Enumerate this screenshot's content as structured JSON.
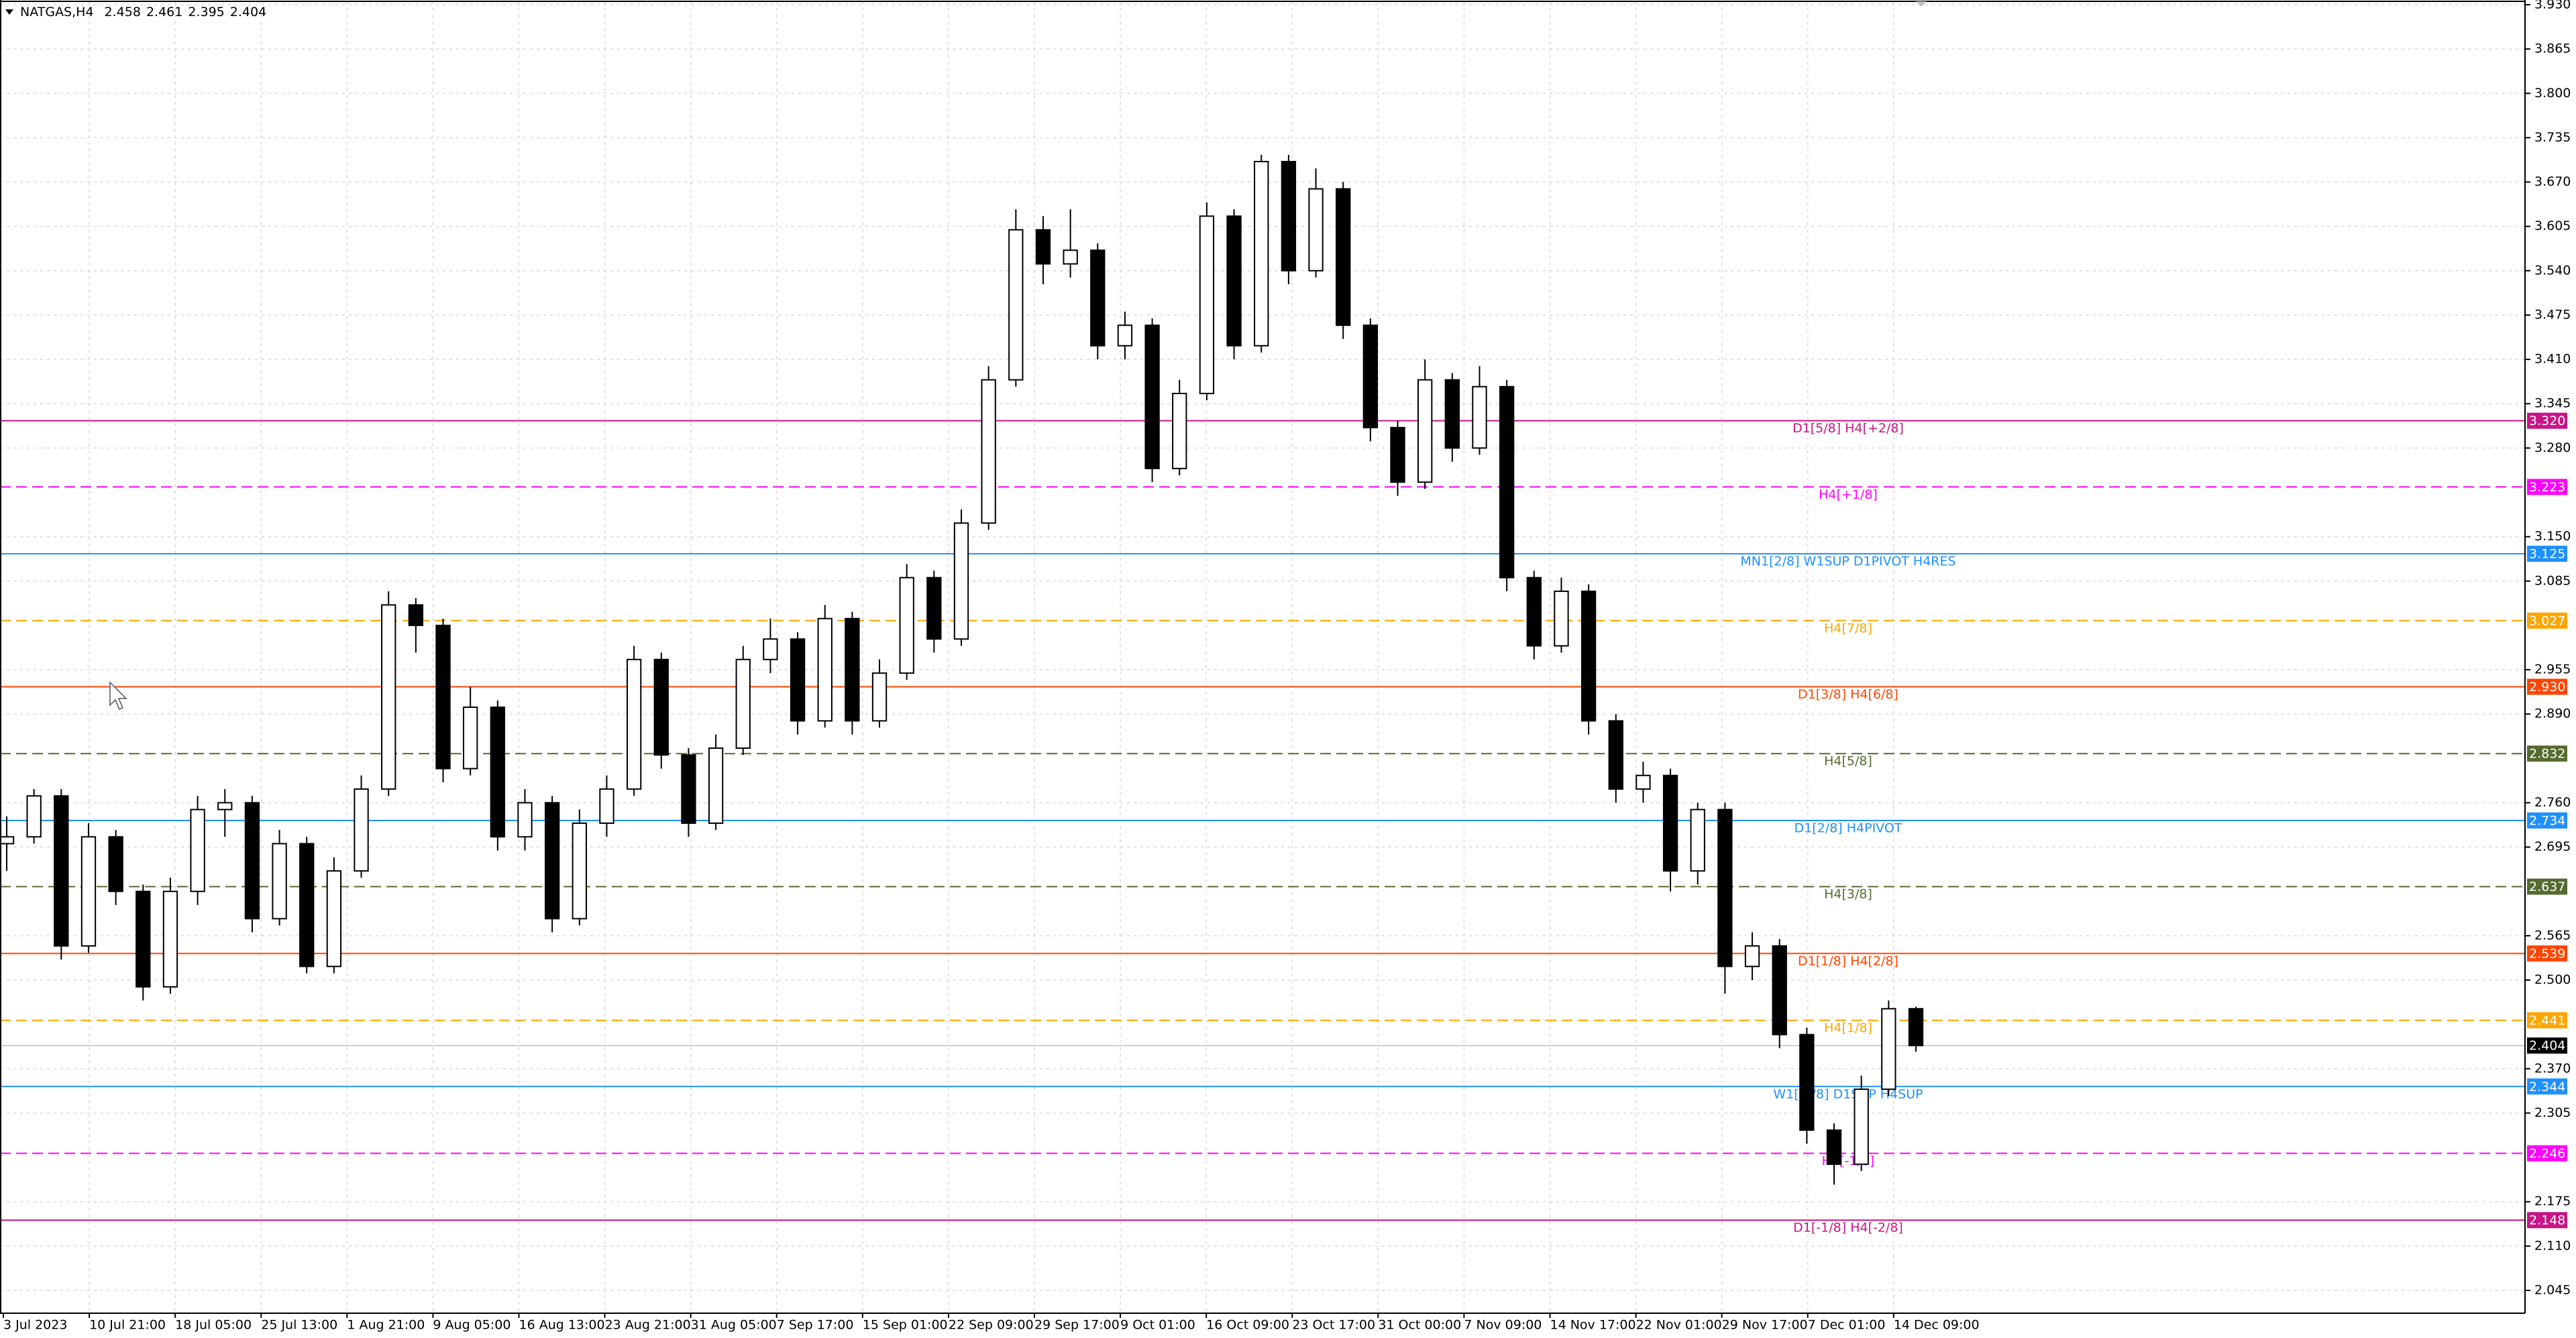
{
  "chart_data": {
    "type": "candlestick",
    "title": "NATGAS,H4",
    "header_ohlc": [
      2.458,
      2.461,
      2.395,
      2.404
    ],
    "last_price": 2.404,
    "ylim": [
      2.045,
      3.93
    ],
    "yticks": [
      {
        "value": 3.93,
        "label": "3.930"
      },
      3.865,
      {
        "value": 3.8,
        "label": "3.800"
      },
      3.735,
      {
        "value": 3.67,
        "label": "3.670"
      },
      3.605,
      {
        "value": 3.54,
        "label": "3.540"
      },
      3.475,
      {
        "value": 3.41,
        "label": "3.410"
      },
      3.345,
      {
        "value": 3.28,
        "label": "3.280"
      },
      {
        "value": 3.15,
        "label": "3.150"
      },
      3.085,
      2.955,
      {
        "value": 2.89,
        "label": "2.890"
      },
      {
        "value": 2.76,
        "label": "2.760"
      },
      2.695,
      2.565,
      {
        "value": 2.5,
        "label": "2.500"
      },
      {
        "value": 2.37,
        "label": "2.370"
      },
      2.305,
      2.175,
      {
        "value": 2.11,
        "label": "2.110"
      },
      2.045
    ],
    "grid": true,
    "categories": [
      "3 Jul 2023",
      "10 Jul 21:00",
      "18 Jul 05:00",
      "25 Jul 13:00",
      "1 Aug 21:00",
      "9 Aug 05:00",
      "16 Aug 13:00",
      "23 Aug 21:00",
      "31 Aug 05:00",
      "7 Sep 17:00",
      "15 Sep 01:00",
      "22 Sep 09:00",
      "29 Sep 17:00",
      "9 Oct 01:00",
      "16 Oct 09:00",
      "23 Oct 17:00",
      "31 Oct 00:00",
      "7 Nov 09:00",
      "14 Nov 17:00",
      "22 Nov 01:00",
      "29 Nov 17:00",
      "7 Dec 01:00",
      "14 Dec 09:00"
    ],
    "up_color": "#ffffff",
    "down_color": "#000000",
    "ohlc": [
      [
        2.7,
        2.74,
        2.66,
        2.71
      ],
      [
        2.71,
        2.78,
        2.7,
        2.77
      ],
      [
        2.77,
        2.78,
        2.53,
        2.55
      ],
      [
        2.55,
        2.73,
        2.54,
        2.71
      ],
      [
        2.71,
        2.72,
        2.61,
        2.63
      ],
      [
        2.63,
        2.64,
        2.47,
        2.49
      ],
      [
        2.49,
        2.65,
        2.48,
        2.63
      ],
      [
        2.63,
        2.77,
        2.61,
        2.75
      ],
      [
        2.75,
        2.78,
        2.71,
        2.76
      ],
      [
        2.76,
        2.77,
        2.57,
        2.59
      ],
      [
        2.59,
        2.72,
        2.58,
        2.7
      ],
      [
        2.7,
        2.71,
        2.51,
        2.52
      ],
      [
        2.52,
        2.68,
        2.51,
        2.66
      ],
      [
        2.66,
        2.8,
        2.65,
        2.78
      ],
      [
        2.78,
        3.07,
        2.77,
        3.05
      ],
      [
        3.05,
        3.06,
        2.98,
        3.02
      ],
      [
        3.02,
        3.03,
        2.79,
        2.81
      ],
      [
        2.81,
        2.93,
        2.8,
        2.9
      ],
      [
        2.9,
        2.91,
        2.69,
        2.71
      ],
      [
        2.71,
        2.78,
        2.69,
        2.76
      ],
      [
        2.76,
        2.77,
        2.57,
        2.59
      ],
      [
        2.59,
        2.75,
        2.58,
        2.73
      ],
      [
        2.73,
        2.8,
        2.71,
        2.78
      ],
      [
        2.78,
        2.99,
        2.77,
        2.97
      ],
      [
        2.97,
        2.98,
        2.81,
        2.83
      ],
      [
        2.83,
        2.84,
        2.71,
        2.73
      ],
      [
        2.73,
        2.86,
        2.72,
        2.84
      ],
      [
        2.84,
        2.99,
        2.83,
        2.97
      ],
      [
        2.97,
        3.03,
        2.95,
        3.0
      ],
      [
        3.0,
        3.01,
        2.86,
        2.88
      ],
      [
        2.88,
        3.05,
        2.87,
        3.03
      ],
      [
        3.03,
        3.04,
        2.86,
        2.88
      ],
      [
        2.88,
        2.97,
        2.87,
        2.95
      ],
      [
        2.95,
        3.11,
        2.94,
        3.09
      ],
      [
        3.09,
        3.1,
        2.98,
        3.0
      ],
      [
        3.0,
        3.19,
        2.99,
        3.17
      ],
      [
        3.17,
        3.4,
        3.16,
        3.38
      ],
      [
        3.38,
        3.63,
        3.37,
        3.6
      ],
      [
        3.6,
        3.62,
        3.52,
        3.55
      ],
      [
        3.55,
        3.63,
        3.53,
        3.57
      ],
      [
        3.57,
        3.58,
        3.41,
        3.43
      ],
      [
        3.43,
        3.48,
        3.41,
        3.46
      ],
      [
        3.46,
        3.47,
        3.23,
        3.25
      ],
      [
        3.25,
        3.38,
        3.24,
        3.36
      ],
      [
        3.36,
        3.64,
        3.35,
        3.62
      ],
      [
        3.62,
        3.63,
        3.41,
        3.43
      ],
      [
        3.43,
        3.71,
        3.42,
        3.7
      ],
      [
        3.7,
        3.71,
        3.52,
        3.54
      ],
      [
        3.54,
        3.69,
        3.53,
        3.66
      ],
      [
        3.66,
        3.67,
        3.44,
        3.46
      ],
      [
        3.46,
        3.47,
        3.29,
        3.31
      ],
      [
        3.31,
        3.32,
        3.21,
        3.23
      ],
      [
        3.23,
        3.41,
        3.22,
        3.38
      ],
      [
        3.38,
        3.39,
        3.26,
        3.28
      ],
      [
        3.28,
        3.4,
        3.27,
        3.37
      ],
      [
        3.37,
        3.38,
        3.07,
        3.09
      ],
      [
        3.09,
        3.1,
        2.97,
        2.99
      ],
      [
        2.99,
        3.09,
        2.98,
        3.07
      ],
      [
        3.07,
        3.08,
        2.86,
        2.88
      ],
      [
        2.88,
        2.89,
        2.76,
        2.78
      ],
      [
        2.78,
        2.82,
        2.76,
        2.8
      ],
      [
        2.8,
        2.81,
        2.63,
        2.66
      ],
      [
        2.66,
        2.76,
        2.64,
        2.75
      ],
      [
        2.75,
        2.76,
        2.48,
        2.52
      ],
      [
        2.52,
        2.57,
        2.5,
        2.55
      ],
      [
        2.55,
        2.56,
        2.4,
        2.42
      ],
      [
        2.42,
        2.43,
        2.26,
        2.28
      ],
      [
        2.28,
        2.29,
        2.2,
        2.23
      ],
      [
        2.23,
        2.36,
        2.22,
        2.34
      ],
      [
        2.34,
        2.47,
        2.33,
        2.458
      ],
      [
        2.458,
        2.461,
        2.395,
        2.404
      ]
    ],
    "levels": [
      {
        "value": 3.32,
        "label": "3.320",
        "text": "D1[5/8] H4[+2/8]",
        "color": "#c71585",
        "style": "solid"
      },
      {
        "value": 3.223,
        "label": "3.223",
        "text": "H4[+1/8]",
        "color": "#ff00ff",
        "style": "dashed"
      },
      {
        "value": 3.125,
        "label": "3.125",
        "text": "MN1[2/8] W1SUP D1PIVOT H4RES",
        "color": "#1e90ff",
        "style": "solid"
      },
      {
        "value": 3.027,
        "label": "3.027",
        "text": "H4[7/8]",
        "color": "#ffa500",
        "style": "dashed"
      },
      {
        "value": 2.93,
        "label": "2.930",
        "text": "D1[3/8] H4[6/8]",
        "color": "#ff4500",
        "style": "solid"
      },
      {
        "value": 2.832,
        "label": "2.832",
        "text": "H4[5/8]",
        "color": "#556b2f",
        "style": "dashed"
      },
      {
        "value": 2.734,
        "label": "2.734",
        "text": "D1[2/8] H4PIVOT",
        "color": "#1e90ff",
        "style": "solid"
      },
      {
        "value": 2.637,
        "label": "2.637",
        "text": "H4[3/8]",
        "color": "#556b2f",
        "style": "dashed"
      },
      {
        "value": 2.539,
        "label": "2.539",
        "text": "D1[1/8] H4[2/8]",
        "color": "#ff4500",
        "style": "solid"
      },
      {
        "value": 2.441,
        "label": "2.441",
        "text": "H4[1/8]",
        "color": "#ffa500",
        "style": "dashed"
      },
      {
        "value": 2.344,
        "label": "2.344",
        "text": "W1[-1/8] D1SUP H4SUP",
        "color": "#1e90ff",
        "style": "solid"
      },
      {
        "value": 2.246,
        "label": "2.246",
        "text": "H4[-1/8]",
        "color": "#ff00ff",
        "style": "dashed"
      },
      {
        "value": 2.148,
        "label": "2.148",
        "text": "D1[-1/8] H4[-2/8]",
        "color": "#c71585",
        "style": "solid"
      }
    ]
  }
}
